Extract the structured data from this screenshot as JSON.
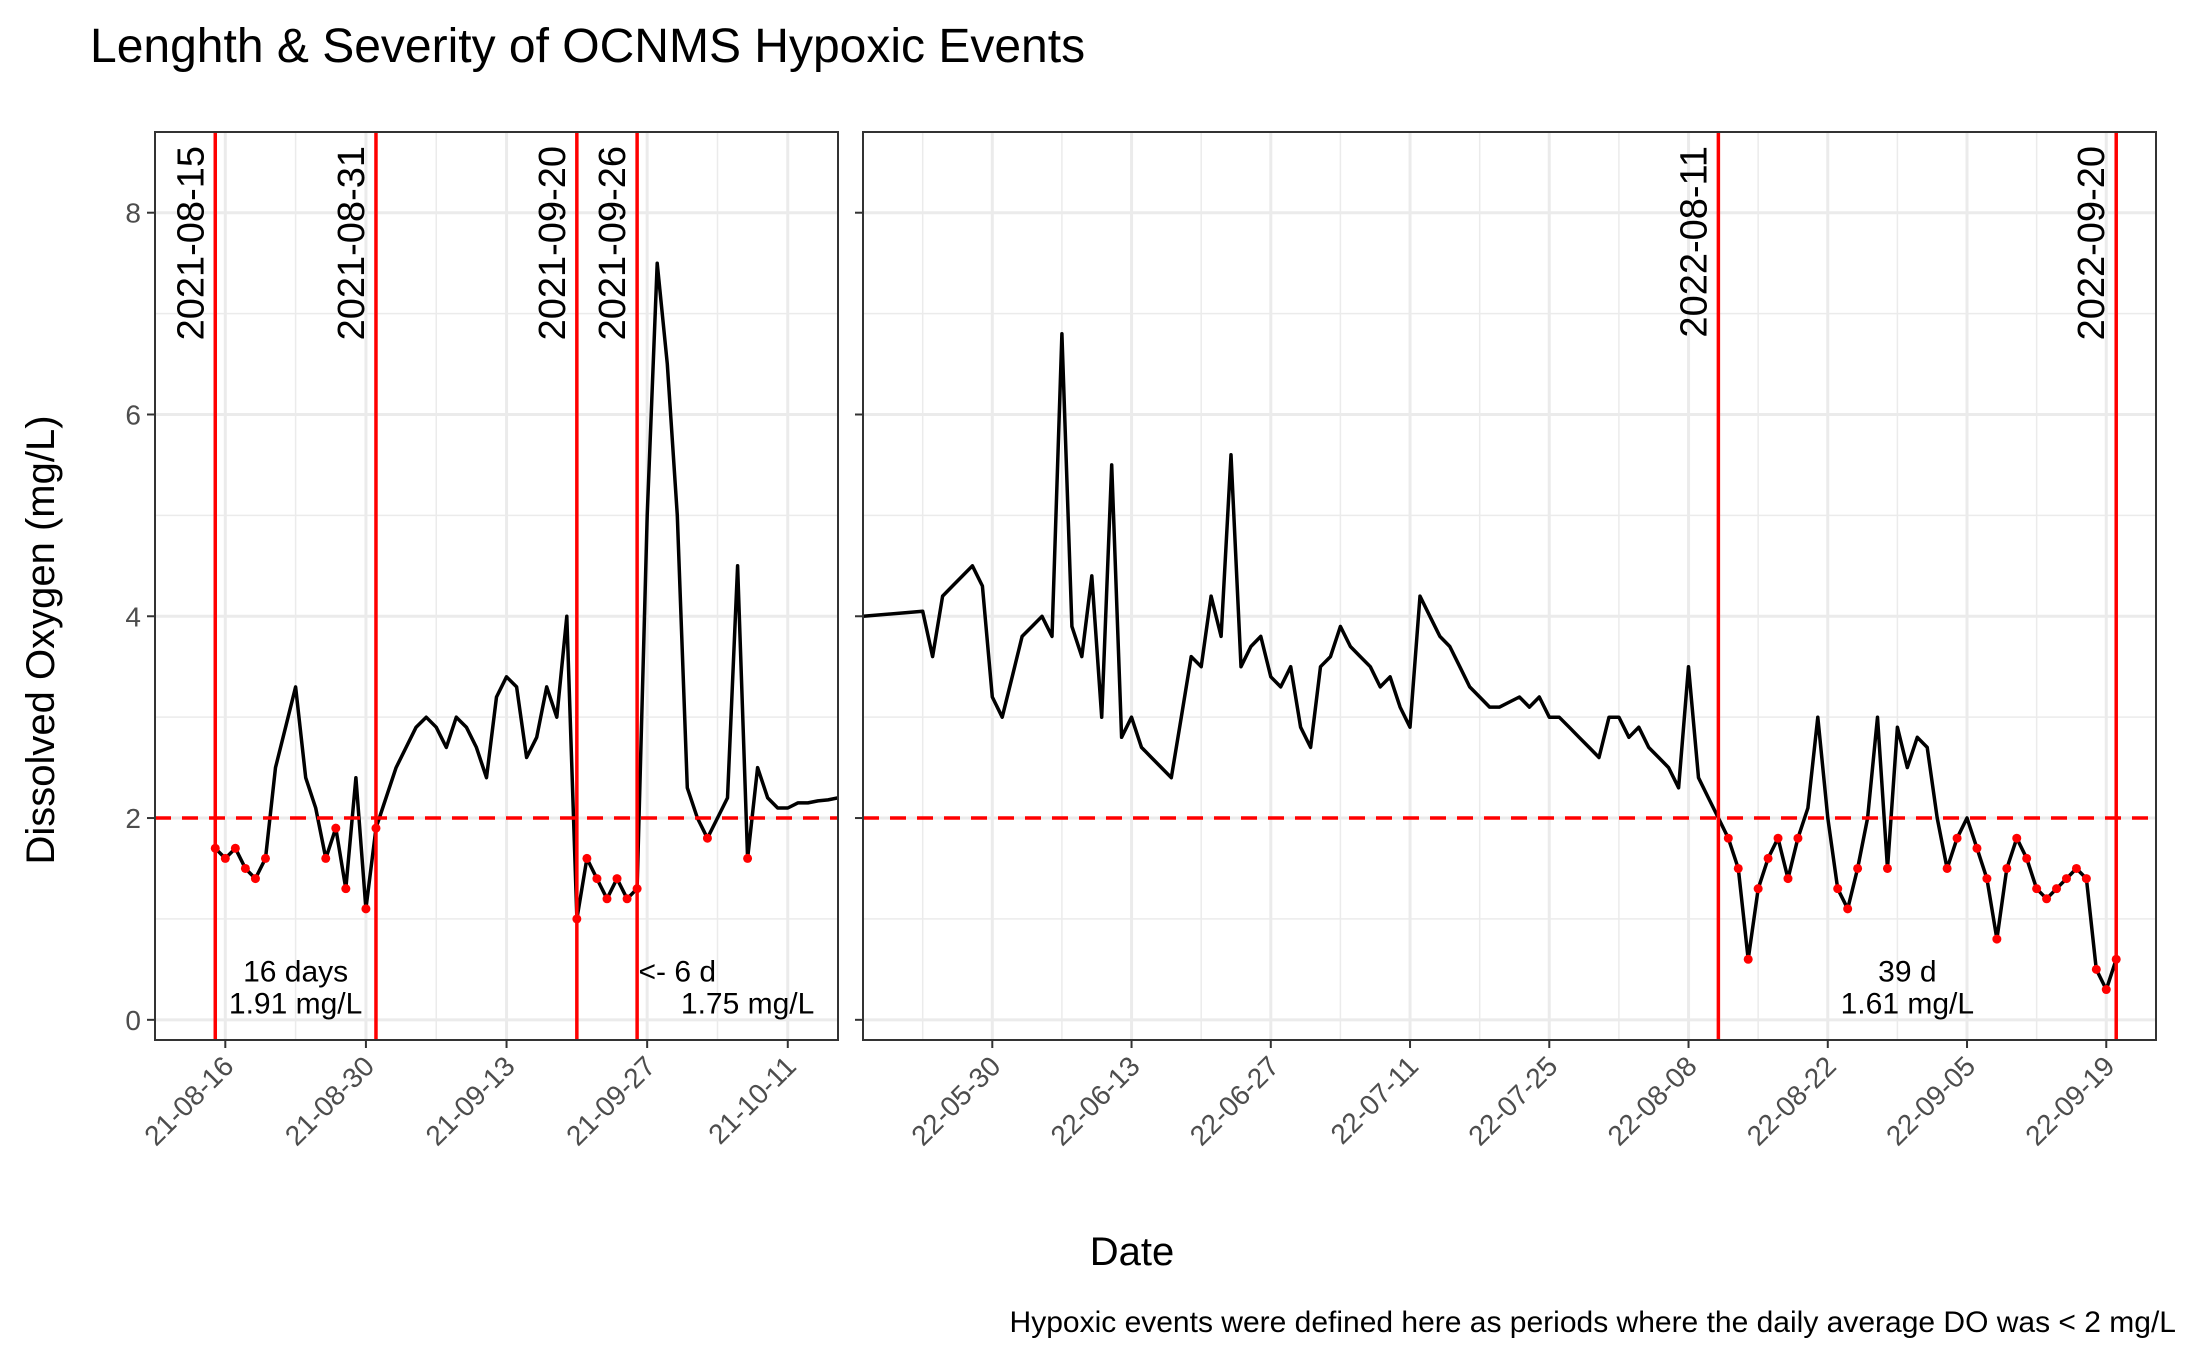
{
  "title": "Lenghth & Severity of OCNMS Hypoxic Events",
  "xlabel": "Date",
  "ylabel": "Dissolved Oxygen (mg/L)",
  "caption": "Hypoxic events were defined here as periods where the daily average DO was < 2 mg/L",
  "colors": {
    "series": "#000000",
    "hypoxic": "#ff0000",
    "threshold": "#ff0000",
    "event_line": "#ff0000",
    "grid": "#ebebeb",
    "panel_border": "#333333"
  },
  "chart_data": [
    {
      "type": "line",
      "panel": "2021",
      "xlim": [
        "2021-08-09",
        "2021-10-16"
      ],
      "ylim": [
        -0.2,
        8.8
      ],
      "y_ticks": [
        0,
        2,
        4,
        6,
        8
      ],
      "x_ticks": [
        "21-08-16",
        "21-08-30",
        "21-09-13",
        "21-09-27",
        "21-10-11"
      ],
      "x_tick_dates": [
        "2021-08-16",
        "2021-08-30",
        "2021-09-13",
        "2021-09-27",
        "2021-10-11"
      ],
      "threshold": 2,
      "event_lines": [
        {
          "date": "2021-08-15",
          "label": "2021-08-15"
        },
        {
          "date": "2021-08-31",
          "label": "2021-08-31"
        },
        {
          "date": "2021-09-20",
          "label": "2021-09-20"
        },
        {
          "date": "2021-09-26",
          "label": "2021-09-26"
        }
      ],
      "annotations": [
        {
          "text": "16 days",
          "x": "2021-08-23",
          "y": 0.48
        },
        {
          "text": "1.91 mg/L",
          "x": "2021-08-23",
          "y": 0.16
        },
        {
          "text": "<- 6 d",
          "x": "2021-09-30",
          "y": 0.48
        },
        {
          "text": "1.75 mg/L",
          "x": "2021-10-07",
          "y": 0.16
        }
      ],
      "series": [
        {
          "x": [
            "2021-08-15",
            "2021-08-16",
            "2021-08-17",
            "2021-08-18",
            "2021-08-19",
            "2021-08-20",
            "2021-08-21",
            "2021-08-22",
            "2021-08-23",
            "2021-08-24",
            "2021-08-25",
            "2021-08-26",
            "2021-08-27",
            "2021-08-28",
            "2021-08-29",
            "2021-08-30",
            "2021-08-31",
            "2021-09-01",
            "2021-09-02",
            "2021-09-03",
            "2021-09-04",
            "2021-09-05",
            "2021-09-06",
            "2021-09-07",
            "2021-09-08",
            "2021-09-09",
            "2021-09-10",
            "2021-09-11",
            "2021-09-12",
            "2021-09-13",
            "2021-09-14",
            "2021-09-15",
            "2021-09-16",
            "2021-09-17",
            "2021-09-18",
            "2021-09-19",
            "2021-09-20",
            "2021-09-21",
            "2021-09-22",
            "2021-09-23",
            "2021-09-24",
            "2021-09-25",
            "2021-09-26",
            "2021-09-27",
            "2021-09-28",
            "2021-09-29",
            "2021-09-30",
            "2021-10-01",
            "2021-10-02",
            "2021-10-03",
            "2021-10-04",
            "2021-10-05",
            "2021-10-06",
            "2021-10-07",
            "2021-10-08",
            "2021-10-09",
            "2021-10-10",
            "2021-10-11",
            "2021-10-12",
            "2021-10-13",
            "2021-10-14",
            "2021-10-15",
            "2021-10-16"
          ],
          "y": [
            1.7,
            1.6,
            1.7,
            1.5,
            1.4,
            1.6,
            2.5,
            2.9,
            3.3,
            2.4,
            2.1,
            1.6,
            1.9,
            1.3,
            2.4,
            1.1,
            1.9,
            2.2,
            2.5,
            2.7,
            2.9,
            3.0,
            2.9,
            2.7,
            3.0,
            2.9,
            2.7,
            2.4,
            3.2,
            3.4,
            3.3,
            2.6,
            2.8,
            3.3,
            3.0,
            4.0,
            1.0,
            1.6,
            1.4,
            1.2,
            1.4,
            1.2,
            1.3,
            5.0,
            7.5,
            6.5,
            5.0,
            2.3,
            2.0,
            1.8,
            2.0,
            2.2,
            4.5,
            1.6,
            2.5,
            2.2,
            2.1,
            2.1,
            2.15,
            2.15,
            2.17,
            2.18,
            2.2
          ]
        }
      ]
    },
    {
      "type": "line",
      "panel": "2022",
      "xlim": [
        "2022-05-17",
        "2022-09-24"
      ],
      "ylim": [
        -0.2,
        8.8
      ],
      "y_ticks": [
        0,
        2,
        4,
        6,
        8
      ],
      "x_ticks": [
        "22-05-30",
        "22-06-13",
        "22-06-27",
        "22-07-11",
        "22-07-25",
        "22-08-08",
        "22-08-22",
        "22-09-05",
        "22-09-19"
      ],
      "x_tick_dates": [
        "2022-05-30",
        "2022-06-13",
        "2022-06-27",
        "2022-07-11",
        "2022-07-25",
        "2022-08-08",
        "2022-08-22",
        "2022-09-05",
        "2022-09-19"
      ],
      "threshold": 2,
      "event_lines": [
        {
          "date": "2022-08-11",
          "label": "2022-08-11"
        },
        {
          "date": "2022-09-20",
          "label": "2022-09-20"
        }
      ],
      "annotations": [
        {
          "text": "39 d",
          "x": "2022-08-30",
          "y": 0.48
        },
        {
          "text": "1.61 mg/L",
          "x": "2022-08-30",
          "y": 0.16
        }
      ],
      "series": [
        {
          "x": [
            "2022-05-17",
            "2022-05-23",
            "2022-05-24",
            "2022-05-25",
            "2022-05-26",
            "2022-05-27",
            "2022-05-28",
            "2022-05-29",
            "2022-05-30",
            "2022-05-31",
            "2022-06-01",
            "2022-06-02",
            "2022-06-03",
            "2022-06-04",
            "2022-06-05",
            "2022-06-06",
            "2022-06-07",
            "2022-06-08",
            "2022-06-09",
            "2022-06-10",
            "2022-06-11",
            "2022-06-12",
            "2022-06-13",
            "2022-06-14",
            "2022-06-15",
            "2022-06-16",
            "2022-06-17",
            "2022-06-18",
            "2022-06-19",
            "2022-06-20",
            "2022-06-21",
            "2022-06-22",
            "2022-06-23",
            "2022-06-24",
            "2022-06-25",
            "2022-06-26",
            "2022-06-27",
            "2022-06-28",
            "2022-06-29",
            "2022-06-30",
            "2022-07-01",
            "2022-07-02",
            "2022-07-03",
            "2022-07-04",
            "2022-07-05",
            "2022-07-06",
            "2022-07-07",
            "2022-07-08",
            "2022-07-09",
            "2022-07-10",
            "2022-07-11",
            "2022-07-12",
            "2022-07-13",
            "2022-07-14",
            "2022-07-15",
            "2022-07-16",
            "2022-07-17",
            "2022-07-18",
            "2022-07-19",
            "2022-07-20",
            "2022-07-21",
            "2022-07-22",
            "2022-07-23",
            "2022-07-24",
            "2022-07-25",
            "2022-07-26",
            "2022-07-27",
            "2022-07-28",
            "2022-07-29",
            "2022-07-30",
            "2022-07-31",
            "2022-08-01",
            "2022-08-02",
            "2022-08-03",
            "2022-08-04",
            "2022-08-05",
            "2022-08-06",
            "2022-08-07",
            "2022-08-08",
            "2022-08-09",
            "2022-08-10",
            "2022-08-11",
            "2022-08-12",
            "2022-08-13",
            "2022-08-14",
            "2022-08-15",
            "2022-08-16",
            "2022-08-17",
            "2022-08-18",
            "2022-08-19",
            "2022-08-20",
            "2022-08-21",
            "2022-08-22",
            "2022-08-23",
            "2022-08-24",
            "2022-08-25",
            "2022-08-26",
            "2022-08-27",
            "2022-08-28",
            "2022-08-29",
            "2022-08-30",
            "2022-08-31",
            "2022-09-01",
            "2022-09-02",
            "2022-09-03",
            "2022-09-04",
            "2022-09-05",
            "2022-09-06",
            "2022-09-07",
            "2022-09-08",
            "2022-09-09",
            "2022-09-10",
            "2022-09-11",
            "2022-09-12",
            "2022-09-13",
            "2022-09-14",
            "2022-09-15",
            "2022-09-16",
            "2022-09-17",
            "2022-09-18",
            "2022-09-19",
            "2022-09-20"
          ],
          "y": [
            4.0,
            4.05,
            3.6,
            4.2,
            4.3,
            4.4,
            4.5,
            4.3,
            3.2,
            3.0,
            3.4,
            3.8,
            3.9,
            4.0,
            3.8,
            6.8,
            3.9,
            3.6,
            4.4,
            3.0,
            5.5,
            2.8,
            3.0,
            2.7,
            2.6,
            2.5,
            2.4,
            3.0,
            3.6,
            3.5,
            4.2,
            3.8,
            5.6,
            3.5,
            3.7,
            3.8,
            3.4,
            3.3,
            3.5,
            2.9,
            2.7,
            3.5,
            3.6,
            3.9,
            3.7,
            3.6,
            3.5,
            3.3,
            3.4,
            3.1,
            2.9,
            4.2,
            4.0,
            3.8,
            3.7,
            3.5,
            3.3,
            3.2,
            3.1,
            3.1,
            3.15,
            3.2,
            3.1,
            3.2,
            3.0,
            3.0,
            2.9,
            2.8,
            2.7,
            2.6,
            3.0,
            3.0,
            2.8,
            2.9,
            2.7,
            2.6,
            2.5,
            2.3,
            3.5,
            2.4,
            2.2,
            2.0,
            1.8,
            1.5,
            0.6,
            1.3,
            1.6,
            1.8,
            1.4,
            1.8,
            2.1,
            3.0,
            2.0,
            1.3,
            1.1,
            1.5,
            2.0,
            3.0,
            1.5,
            2.9,
            2.5,
            2.8,
            2.7,
            2.0,
            1.5,
            1.8,
            2.0,
            1.7,
            1.4,
            0.8,
            1.5,
            1.8,
            1.6,
            1.3,
            1.2,
            1.3,
            1.4,
            1.5,
            1.4,
            0.5,
            0.3,
            0.6
          ]
        }
      ]
    }
  ]
}
